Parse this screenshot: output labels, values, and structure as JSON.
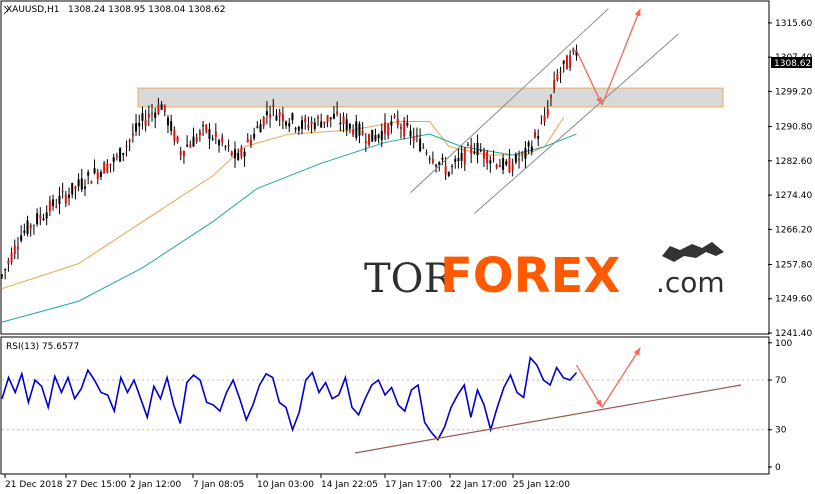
{
  "header": {
    "symbol_label": "XAUUSD,H1",
    "ohlc_label": "1308.24 1308.95 1308.04 1308.62"
  },
  "price_panel": {
    "current_price_label": "1308.62",
    "watermark": {
      "prefix": "TOR",
      "main": "FOREX",
      "suffix": ".com"
    }
  },
  "rsi_panel": {
    "label": "RSI(13) 75.6577"
  },
  "chart_data": [
    {
      "type": "candlestick",
      "title": "XAUUSD,H1",
      "ylim": [
        1241.4,
        1320.6
      ],
      "y_ticks": [
        "1315.60",
        "1307.40",
        "1299.20",
        "1290.80",
        "1282.60",
        "1274.40",
        "1266.20",
        "1257.80",
        "1249.60",
        "1241.40"
      ],
      "x_ticks": [
        "21 Dec 2018",
        "27 Dec 15:00",
        "2 Jan 12:00",
        "7 Jan 08:05",
        "10 Jan 03:00",
        "14 Jan 22:05",
        "17 Jan 17:00",
        "22 Jan 17:00",
        "25 Jan 12:00"
      ],
      "last_price": 1308.62,
      "resistance_zone": [
        1295.5,
        1300.0
      ],
      "moving_averages": [
        {
          "color": "#e8a64a",
          "points": [
            [
              0,
              1252
            ],
            [
              12,
              1258
            ],
            [
              22,
              1268
            ],
            [
              33,
              1279
            ],
            [
              38,
              1286
            ],
            [
              45,
              1289
            ],
            [
              55,
              1290
            ],
            [
              62,
              1292
            ],
            [
              67,
              1292
            ],
            [
              70,
              1286
            ],
            [
              76,
              1284
            ],
            [
              82,
              1284
            ],
            [
              85,
              1286
            ],
            [
              88,
              1293
            ]
          ]
        },
        {
          "color": "#20a8a0",
          "points": [
            [
              0,
              1244
            ],
            [
              12,
              1249
            ],
            [
              22,
              1257
            ],
            [
              33,
              1268
            ],
            [
              40,
              1276
            ],
            [
              50,
              1282
            ],
            [
              60,
              1287
            ],
            [
              67,
              1289
            ],
            [
              72,
              1286
            ],
            [
              80,
              1284
            ],
            [
              85,
              1286
            ],
            [
              90,
              1289
            ]
          ]
        }
      ],
      "channel_lines": [
        [
          [
            64,
            1275
          ],
          [
            95,
            1319
          ]
        ],
        [
          [
            74,
            1270
          ],
          [
            106,
            1313
          ]
        ]
      ],
      "forecast_arrows": [
        [
          [
            90,
            1309
          ],
          [
            94,
            1296
          ],
          [
            100,
            1319
          ]
        ]
      ]
    },
    {
      "type": "line",
      "title": "RSI(13) 75.6577",
      "ylim": [
        0,
        100
      ],
      "y_ticks": [
        "100",
        "70",
        "30",
        "0"
      ],
      "levels": [
        70,
        30
      ],
      "series": [
        {
          "values": [
            55,
            72,
            60,
            75,
            52,
            70,
            65,
            48,
            73,
            60,
            72,
            55,
            63,
            78,
            70,
            60,
            58,
            45,
            72,
            60,
            70,
            55,
            40,
            65,
            55,
            72,
            50,
            35,
            68,
            74,
            70,
            52,
            50,
            45,
            60,
            70,
            55,
            38,
            50,
            66,
            75,
            72,
            52,
            48,
            30,
            44,
            70,
            76,
            60,
            68,
            55,
            58,
            72,
            48,
            42,
            55,
            66,
            70,
            58,
            64,
            50,
            45,
            62,
            66,
            36,
            28,
            22,
            32,
            48,
            58,
            66,
            40,
            62,
            50,
            30,
            48,
            64,
            74,
            60,
            56,
            88,
            82,
            70,
            66,
            80,
            72,
            70,
            76
          ]
        }
      ],
      "trendline": [
        [
          57,
          10
        ],
        [
          122,
          71
        ]
      ],
      "forecast_arrow": [
        [
          90,
          82
        ],
        [
          94,
          48
        ],
        [
          100,
          96
        ]
      ]
    }
  ]
}
